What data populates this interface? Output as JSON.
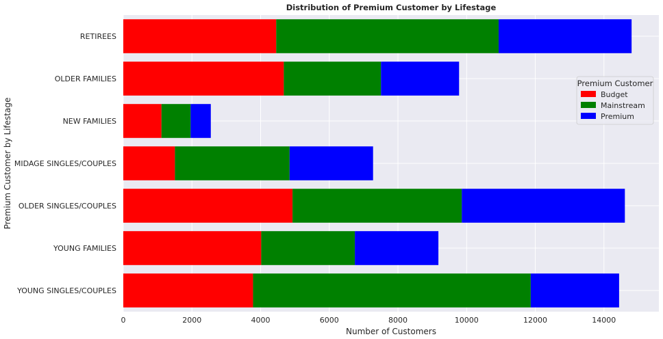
{
  "chart_data": {
    "type": "bar",
    "orientation": "horizontal",
    "stacked": true,
    "title": "Distribution of Premium Customer by Lifestage",
    "xlabel": "Number of Customers",
    "ylabel": "Premium Customer by Lifestage",
    "xlim": [
      0,
      15600
    ],
    "xticks": [
      0,
      2000,
      4000,
      6000,
      8000,
      10000,
      12000,
      14000
    ],
    "xtick_labels": [
      "0",
      "2000",
      "4000",
      "6000",
      "8000",
      "10000",
      "12000",
      "14000"
    ],
    "grid": true,
    "categories": [
      "RETIREES",
      "OLDER FAMILIES",
      "NEW FAMILIES",
      "MIDAGE SINGLES/COUPLES",
      "OLDER SINGLES/COUPLES",
      "YOUNG FAMILIES",
      "YOUNG SINGLES/COUPLES"
    ],
    "series": [
      {
        "name": "Budget",
        "color": "#ff0000",
        "values": [
          4454,
          4675,
          1112,
          1504,
          4929,
          4017,
          3779
        ]
      },
      {
        "name": "Mainstream",
        "color": "#008000",
        "values": [
          6479,
          2831,
          849,
          3340,
          4930,
          2728,
          8088
        ]
      },
      {
        "name": "Premium",
        "color": "#0000ff",
        "values": [
          3872,
          2274,
          588,
          2431,
          4750,
          2433,
          2574
        ]
      }
    ],
    "legend": {
      "title": "Premium Customer",
      "position": "right"
    }
  },
  "colors": {
    "plot_bg": "#eaeaf2",
    "grid": "#ffffff",
    "text": "#262626"
  }
}
